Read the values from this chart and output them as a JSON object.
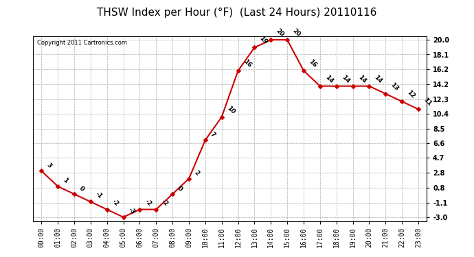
{
  "title": "THSW Index per Hour (°F)  (Last 24 Hours) 20110116",
  "copyright": "Copyright 2011 Cartronics.com",
  "hours": [
    "00:00",
    "01:00",
    "02:00",
    "03:00",
    "04:00",
    "05:00",
    "06:00",
    "07:00",
    "08:00",
    "09:00",
    "10:00",
    "11:00",
    "12:00",
    "13:00",
    "14:00",
    "15:00",
    "16:00",
    "17:00",
    "18:00",
    "19:00",
    "20:00",
    "21:00",
    "22:00",
    "23:00"
  ],
  "values": [
    3,
    1,
    0,
    -1,
    -2,
    -3,
    -2,
    -2,
    0,
    2,
    7,
    10,
    16,
    19,
    20,
    20,
    16,
    14,
    14,
    14,
    14,
    13,
    12,
    11
  ],
  "yticks": [
    -3.0,
    -1.1,
    0.8,
    2.8,
    4.7,
    6.6,
    8.5,
    10.4,
    12.3,
    14.2,
    16.2,
    18.1,
    20.0
  ],
  "ylim": [
    -3.5,
    20.5
  ],
  "line_color": "#cc0000",
  "marker_color": "#cc0000",
  "bg_color": "#ffffff",
  "plot_bg_color": "#ffffff",
  "grid_color": "#aaaaaa",
  "title_fontsize": 11,
  "label_fontsize": 7,
  "copyright_fontsize": 6,
  "annotation_fontsize": 6.5
}
